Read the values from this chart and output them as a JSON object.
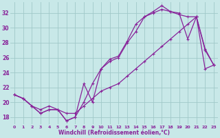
{
  "bg_color": "#c8e8e8",
  "grid_color": "#a0c8c8",
  "line_color": "#882299",
  "xlabel": "Windchill (Refroidissement éolien,°C)",
  "xlabel_color": "#882299",
  "tick_color": "#882299",
  "ylim": [
    17.0,
    33.5
  ],
  "xlim": [
    -0.5,
    23.5
  ],
  "yticks": [
    18,
    20,
    22,
    24,
    26,
    28,
    30,
    32
  ],
  "xticks": [
    0,
    1,
    2,
    3,
    4,
    5,
    6,
    7,
    8,
    9,
    10,
    11,
    12,
    13,
    14,
    15,
    16,
    17,
    18,
    19,
    20,
    21,
    22,
    23
  ],
  "line1_x": [
    0,
    1,
    2,
    3,
    4,
    5,
    6,
    7,
    8,
    9,
    10,
    11,
    12,
    13,
    14,
    15,
    16,
    17,
    18,
    19,
    20,
    21,
    22,
    23
  ],
  "line1_y": [
    21.0,
    20.5,
    19.5,
    18.5,
    19.0,
    19.0,
    17.5,
    18.0,
    22.5,
    20.0,
    24.5,
    25.8,
    26.2,
    28.2,
    30.5,
    31.5,
    32.2,
    33.0,
    32.2,
    32.0,
    28.5,
    31.5,
    27.2,
    25.0
  ],
  "line2_x": [
    0,
    1,
    2,
    3,
    4,
    5,
    6,
    7,
    8,
    9,
    10,
    11,
    12,
    13,
    14,
    15,
    16,
    17,
    18,
    19,
    20,
    21,
    22,
    23
  ],
  "line2_y": [
    21.0,
    20.5,
    19.5,
    18.5,
    19.0,
    19.0,
    17.5,
    18.0,
    20.0,
    22.5,
    24.5,
    25.5,
    26.0,
    28.0,
    29.5,
    31.5,
    32.0,
    32.5,
    32.2,
    31.8,
    31.5,
    31.5,
    27.0,
    25.0
  ],
  "line3_x": [
    0,
    1,
    2,
    3,
    4,
    5,
    6,
    7,
    8,
    9,
    10,
    11,
    12,
    13,
    14,
    15,
    16,
    17,
    18,
    19,
    20,
    21,
    22,
    23
  ],
  "line3_y": [
    21.0,
    20.5,
    19.5,
    19.0,
    19.5,
    19.0,
    18.5,
    18.5,
    19.5,
    20.5,
    21.5,
    22.0,
    22.5,
    23.5,
    24.5,
    25.5,
    26.5,
    27.5,
    28.5,
    29.5,
    30.5,
    31.5,
    24.5,
    25.0
  ]
}
